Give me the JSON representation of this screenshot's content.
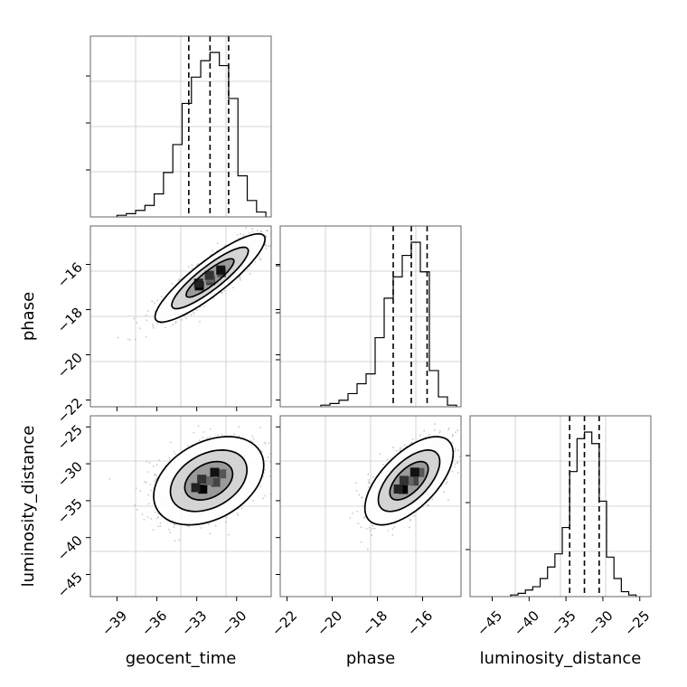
{
  "chart_data": {
    "type": "corner",
    "parameters": [
      "geocent_time",
      "phase",
      "luminosity_distance"
    ],
    "ranges": {
      "geocent_time": [
        -41.0,
        -27.4
      ],
      "phase": [
        -22.3,
        -14.3
      ],
      "luminosity_distance": [
        -48.0,
        -23.5
      ]
    },
    "ticks": {
      "geocent_time": [
        -39,
        -36,
        -33,
        -30
      ],
      "phase": [
        -22,
        -20,
        -18,
        -16
      ],
      "luminosity_distance": [
        -45,
        -40,
        -35,
        -30,
        -25
      ]
    },
    "quantiles": {
      "geocent_time": [
        -33.6,
        -32.0,
        -30.6
      ],
      "phase": [
        -17.3,
        -16.5,
        -15.8
      ],
      "luminosity_distance": [
        -34.5,
        -32.5,
        -30.5
      ]
    },
    "histograms": {
      "geocent_time": {
        "edges": [
          -39.0,
          -38.3,
          -37.6,
          -36.9,
          -36.2,
          -35.5,
          -34.8,
          -34.1,
          -33.4,
          -32.7,
          -32.0,
          -31.3,
          -30.6,
          -29.9,
          -29.2,
          -28.5,
          -27.8
        ],
        "counts": [
          0.01,
          0.02,
          0.04,
          0.07,
          0.14,
          0.27,
          0.44,
          0.69,
          0.85,
          0.95,
          1.0,
          0.92,
          0.72,
          0.25,
          0.1,
          0.03
        ]
      },
      "phase": {
        "edges": [
          -20.5,
          -20.1,
          -19.7,
          -19.3,
          -18.9,
          -18.5,
          -18.1,
          -17.7,
          -17.3,
          -16.9,
          -16.5,
          -16.1,
          -15.7,
          -15.3,
          -14.9,
          -14.5
        ],
        "counts": [
          0.01,
          0.02,
          0.04,
          0.08,
          0.14,
          0.2,
          0.42,
          0.66,
          0.79,
          0.92,
          1.0,
          0.82,
          0.22,
          0.06,
          0.01
        ]
      },
      "luminosity_distance": {
        "edges": [
          -42.5,
          -41.5,
          -40.5,
          -39.5,
          -38.5,
          -37.5,
          -36.5,
          -35.5,
          -34.5,
          -33.5,
          -32.5,
          -31.5,
          -30.5,
          -29.5,
          -28.5,
          -27.5,
          -26.5,
          -25.5
        ],
        "counts": [
          0.01,
          0.02,
          0.04,
          0.06,
          0.11,
          0.18,
          0.26,
          0.42,
          0.76,
          0.96,
          1.0,
          0.93,
          0.58,
          0.24,
          0.11,
          0.03,
          0.01
        ]
      }
    },
    "joint_2d": [
      {
        "x": "geocent_time",
        "y": "phase",
        "center": [
          -32.0,
          -16.6
        ],
        "sigma": [
          1.8,
          0.85
        ],
        "rho": 0.88,
        "contours_sigma": [
          1.0,
          1.6,
          2.3
        ]
      },
      {
        "x": "geocent_time",
        "y": "luminosity_distance",
        "center": [
          -32.1,
          -32.3
        ],
        "sigma": [
          1.8,
          2.6
        ],
        "rho": 0.35,
        "contours_sigma": [
          1.0,
          1.6,
          2.3
        ]
      },
      {
        "x": "phase",
        "y": "luminosity_distance",
        "center": [
          -16.6,
          -32.3
        ],
        "sigma": [
          0.85,
          2.6
        ],
        "rho": 0.62,
        "contours_sigma": [
          1.0,
          1.6,
          2.3
        ]
      }
    ]
  }
}
